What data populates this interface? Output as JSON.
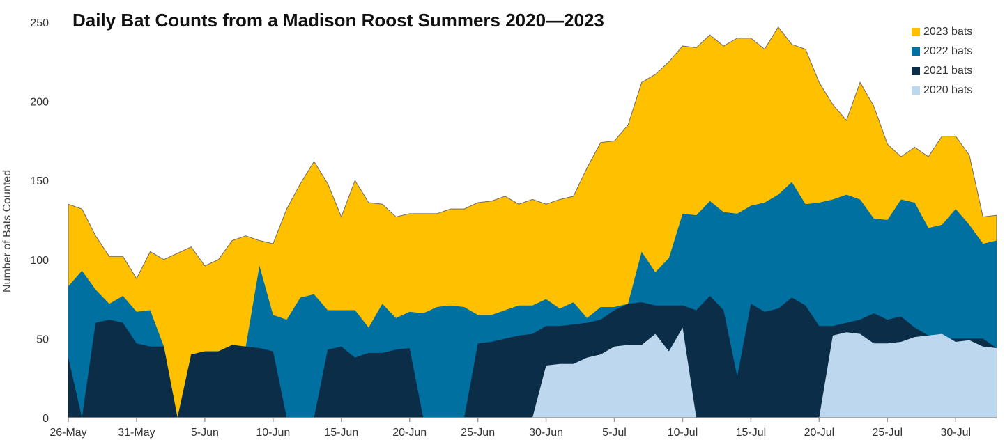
{
  "chart_data": {
    "type": "area",
    "title": "Daily Bat Counts from a Madison Roost Summers 2020—2023",
    "xlabel": "",
    "ylabel": "Number of Bats Counted",
    "ylim": [
      0,
      250
    ],
    "yticks": [
      0,
      50,
      100,
      150,
      200,
      250
    ],
    "x_start": "26-May",
    "x_end": "2-Aug",
    "x_tick_labels": [
      "26-May",
      "31-May",
      "5-Jun",
      "10-Jun",
      "15-Jun",
      "20-Jun",
      "25-Jun",
      "30-Jun",
      "5-Jul",
      "10-Jul",
      "15-Jul",
      "20-Jul",
      "25-Jul",
      "30-Jul"
    ],
    "x": [
      "26-May",
      "27-May",
      "28-May",
      "29-May",
      "30-May",
      "31-May",
      "1-Jun",
      "2-Jun",
      "3-Jun",
      "4-Jun",
      "5-Jun",
      "6-Jun",
      "7-Jun",
      "8-Jun",
      "9-Jun",
      "10-Jun",
      "11-Jun",
      "12-Jun",
      "13-Jun",
      "14-Jun",
      "15-Jun",
      "16-Jun",
      "17-Jun",
      "18-Jun",
      "19-Jun",
      "20-Jun",
      "21-Jun",
      "22-Jun",
      "23-Jun",
      "24-Jun",
      "25-Jun",
      "26-Jun",
      "27-Jun",
      "28-Jun",
      "29-Jun",
      "30-Jun",
      "1-Jul",
      "2-Jul",
      "3-Jul",
      "4-Jul",
      "5-Jul",
      "6-Jul",
      "7-Jul",
      "8-Jul",
      "9-Jul",
      "10-Jul",
      "11-Jul",
      "12-Jul",
      "13-Jul",
      "14-Jul",
      "15-Jul",
      "16-Jul",
      "17-Jul",
      "18-Jul",
      "19-Jul",
      "20-Jul",
      "21-Jul",
      "22-Jul",
      "23-Jul",
      "24-Jul",
      "25-Jul",
      "26-Jul",
      "27-Jul",
      "28-Jul",
      "29-Jul",
      "30-Jul",
      "31-Jul",
      "1-Aug",
      "2-Aug"
    ],
    "stacked": false,
    "grid": false,
    "legend_position": "top-right",
    "series": [
      {
        "name": "2023 bats",
        "color": "#FFC000",
        "values": [
          135,
          132,
          115,
          102,
          102,
          88,
          105,
          100,
          104,
          108,
          96,
          100,
          112,
          115,
          112,
          110,
          132,
          148,
          162,
          148,
          127,
          150,
          136,
          135,
          127,
          129,
          129,
          129,
          132,
          132,
          136,
          137,
          140,
          135,
          138,
          135,
          138,
          140,
          158,
          174,
          175,
          185,
          212,
          217,
          225,
          235,
          234,
          242,
          235,
          240,
          240,
          233,
          247,
          236,
          233,
          212,
          198,
          188,
          212,
          197,
          173,
          165,
          171,
          165,
          178,
          178,
          166,
          127,
          128
        ]
      },
      {
        "name": "2022 bats",
        "color": "#0070A0",
        "values": [
          83,
          93,
          81,
          72,
          77,
          67,
          68,
          45,
          0,
          40,
          42,
          42,
          46,
          45,
          96,
          65,
          62,
          76,
          78,
          68,
          68,
          68,
          57,
          72,
          63,
          67,
          66,
          70,
          71,
          70,
          65,
          65,
          68,
          71,
          71,
          75,
          69,
          73,
          63,
          70,
          70,
          72,
          105,
          92,
          101,
          129,
          128,
          137,
          130,
          129,
          134,
          136,
          141,
          149,
          135,
          136,
          138,
          141,
          138,
          126,
          125,
          138,
          136,
          120,
          122,
          132,
          122,
          110,
          112
        ]
      },
      {
        "name": "2021 bats",
        "color": "#0C2D48",
        "values": [
          38,
          0,
          60,
          62,
          60,
          47,
          45,
          45,
          0,
          40,
          42,
          42,
          46,
          45,
          44,
          42,
          0,
          0,
          0,
          43,
          45,
          38,
          41,
          41,
          43,
          44,
          0,
          0,
          0,
          0,
          47,
          48,
          50,
          52,
          53,
          58,
          58,
          59,
          60,
          62,
          68,
          72,
          73,
          71,
          71,
          71,
          68,
          77,
          68,
          26,
          72,
          67,
          69,
          76,
          71,
          58,
          58,
          60,
          62,
          66,
          62,
          64,
          57,
          52,
          50,
          50,
          50,
          50,
          44
        ]
      },
      {
        "name": "2020 bats",
        "color": "#BDD7EE",
        "values": [
          0,
          0,
          0,
          0,
          0,
          0,
          0,
          0,
          0,
          0,
          0,
          0,
          0,
          0,
          0,
          0,
          0,
          0,
          0,
          0,
          0,
          0,
          0,
          0,
          0,
          0,
          0,
          0,
          0,
          0,
          0,
          0,
          0,
          0,
          0,
          33,
          34,
          34,
          38,
          40,
          45,
          46,
          46,
          53,
          42,
          57,
          0,
          0,
          0,
          0,
          0,
          0,
          0,
          0,
          0,
          0,
          52,
          54,
          53,
          47,
          47,
          48,
          51,
          52,
          53,
          48,
          49,
          45,
          44
        ]
      }
    ]
  }
}
